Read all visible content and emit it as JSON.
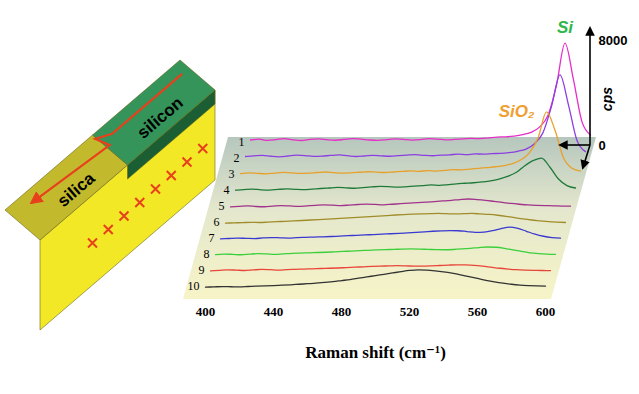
{
  "chart_data": {
    "type": "line",
    "x_label": "Raman shift (cm⁻¹)",
    "y_label": "cps",
    "xlim": [
      400,
      600
    ],
    "xticks": [
      400,
      440,
      480,
      520,
      560,
      600
    ],
    "ylim": [
      0,
      8000
    ],
    "yticks": [
      0,
      8000
    ],
    "x": [
      400,
      405,
      410,
      415,
      420,
      425,
      430,
      435,
      440,
      445,
      450,
      455,
      460,
      465,
      470,
      475,
      480,
      485,
      490,
      495,
      500,
      505,
      510,
      515,
      520,
      525,
      530,
      535,
      540,
      545,
      550,
      555,
      560,
      565,
      570,
      575,
      580,
      585,
      590,
      595,
      600
    ],
    "series": [
      {
        "name": "1",
        "color": "#e62ec8",
        "values": [
          420,
          480,
          390,
          450,
          520,
          430,
          380,
          470,
          510,
          440,
          400,
          460,
          530,
          480,
          420,
          390,
          450,
          500,
          470,
          410,
          440,
          520,
          490,
          430,
          460,
          500,
          540,
          520,
          580,
          640,
          660,
          720,
          820,
          1000,
          1400,
          2300,
          4600,
          7800,
          5000,
          1800,
          800
        ]
      },
      {
        "name": "2",
        "color": "#8c3fe0",
        "values": [
          380,
          430,
          470,
          400,
          360,
          420,
          480,
          450,
          390,
          410,
          460,
          500,
          440,
          380,
          420,
          470,
          430,
          400,
          450,
          490,
          520,
          470,
          440,
          480,
          510,
          560,
          520,
          580,
          560,
          600,
          620,
          680,
          780,
          950,
          1350,
          2200,
          4200,
          6600,
          4300,
          1600,
          750
        ]
      },
      {
        "name": "3",
        "color": "#e8a02a",
        "values": [
          300,
          360,
          320,
          280,
          340,
          390,
          350,
          310,
          330,
          380,
          420,
          370,
          330,
          360,
          400,
          440,
          410,
          380,
          420,
          460,
          500,
          470,
          520,
          490,
          540,
          600,
          580,
          640,
          700,
          760,
          820,
          900,
          1050,
          1350,
          1900,
          3000,
          5000,
          3600,
          1500,
          700,
          480
        ]
      },
      {
        "name": "4",
        "color": "#1f7a3a",
        "values": [
          250,
          300,
          340,
          280,
          260,
          310,
          350,
          320,
          290,
          330,
          380,
          420,
          460,
          430,
          400,
          450,
          500,
          540,
          520,
          480,
          510,
          560,
          600,
          650,
          620,
          680,
          740,
          780,
          820,
          880,
          960,
          1100,
          1300,
          1600,
          2100,
          2500,
          2700,
          2000,
          1100,
          600,
          420
        ]
      },
      {
        "name": "5",
        "color": "#a0338c",
        "values": [
          200,
          240,
          280,
          230,
          210,
          260,
          300,
          270,
          240,
          280,
          320,
          350,
          330,
          300,
          340,
          380,
          410,
          390,
          360,
          400,
          440,
          480,
          520,
          560,
          600,
          650,
          700,
          760,
          800,
          760,
          700,
          620,
          540,
          460,
          400,
          350,
          320,
          300,
          280,
          260,
          250
        ]
      },
      {
        "name": "6",
        "color": "#a08c2a",
        "values": [
          180,
          200,
          220,
          240,
          230,
          260,
          290,
          320,
          350,
          380,
          420,
          450,
          480,
          520,
          560,
          600,
          640,
          680,
          720,
          760,
          800,
          830,
          860,
          880,
          900,
          920,
          900,
          880,
          900,
          920,
          880,
          840,
          780,
          700,
          600,
          500,
          420,
          360,
          300,
          260,
          230
        ]
      },
      {
        "name": "7",
        "color": "#3a3ad0",
        "values": [
          200,
          230,
          260,
          240,
          220,
          270,
          300,
          280,
          260,
          300,
          320,
          340,
          360,
          380,
          410,
          440,
          470,
          500,
          530,
          560,
          590,
          620,
          660,
          700,
          740,
          780,
          810,
          830,
          820,
          760,
          700,
          720,
          820,
          980,
          1100,
          1000,
          780,
          560,
          400,
          300,
          250
        ]
      },
      {
        "name": "8",
        "color": "#3ccf3c",
        "values": [
          220,
          260,
          240,
          210,
          250,
          290,
          270,
          240,
          280,
          320,
          340,
          360,
          380,
          400,
          430,
          460,
          490,
          520,
          550,
          580,
          600,
          620,
          640,
          650,
          640,
          620,
          600,
          590,
          610,
          650,
          700,
          760,
          800,
          780,
          700,
          580,
          460,
          360,
          300,
          260,
          240
        ]
      },
      {
        "name": "9",
        "color": "#e8463a",
        "values": [
          200,
          240,
          280,
          260,
          230,
          270,
          310,
          290,
          260,
          300,
          320,
          340,
          360,
          380,
          400,
          420,
          450,
          480,
          510,
          540,
          560,
          580,
          600,
          580,
          560,
          560,
          580,
          610,
          640,
          660,
          650,
          620,
          560,
          480,
          400,
          340,
          290,
          260,
          240,
          230,
          220
        ]
      },
      {
        "name": "10",
        "color": "#333333",
        "values": [
          180,
          200,
          220,
          210,
          200,
          230,
          260,
          280,
          300,
          330,
          360,
          400,
          440,
          480,
          540,
          600,
          680,
          760,
          860,
          960,
          1060,
          1160,
          1260,
          1360,
          1450,
          1500,
          1480,
          1420,
          1340,
          1240,
          1120,
          980,
          840,
          700,
          580,
          480,
          400,
          340,
          300,
          270,
          250
        ]
      }
    ],
    "annotations": [
      {
        "text": "Si",
        "series": "1",
        "color": "#2db84a"
      },
      {
        "text": "SiO₂",
        "series": "3",
        "color": "#f0a030"
      }
    ],
    "schematic": {
      "upper": "silicon",
      "lower": "silica"
    }
  }
}
